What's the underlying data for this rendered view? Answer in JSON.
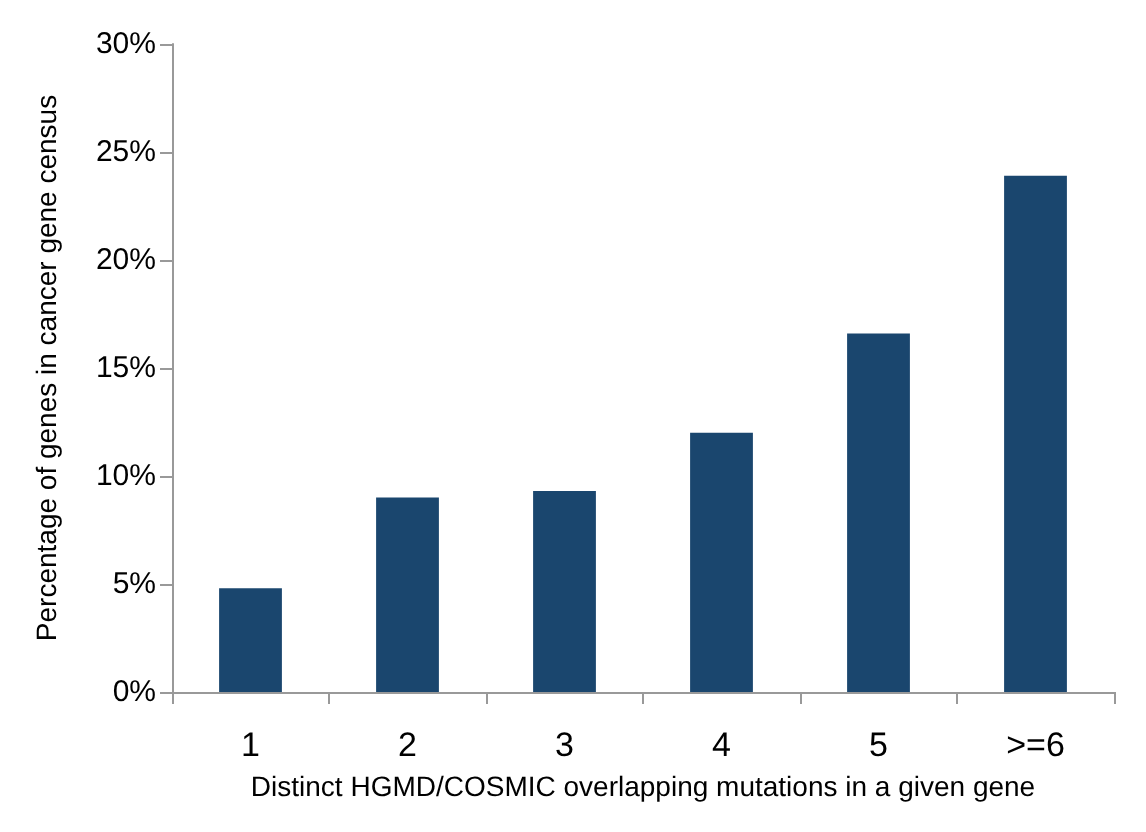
{
  "chart_data": {
    "type": "bar",
    "xlabel": "Distinct HGMD/COSMIC overlapping mutations in a given gene",
    "ylabel": "Percentage of genes in cancer gene census",
    "categories": [
      "1",
      "2",
      "3",
      "4",
      "5",
      ">=6"
    ],
    "values": [
      4.8,
      9.0,
      9.3,
      12.0,
      16.6,
      23.9
    ],
    "color": "#1a466e",
    "ylim": [
      0,
      30
    ],
    "yticks": [
      {
        "value": 0,
        "label": "0%"
      },
      {
        "value": 5,
        "label": "5%"
      },
      {
        "value": 10,
        "label": "10%"
      },
      {
        "value": 15,
        "label": "15%"
      },
      {
        "value": 20,
        "label": "20%"
      },
      {
        "value": 25,
        "label": "25%"
      },
      {
        "value": 30,
        "label": "30%"
      }
    ],
    "grid": false
  }
}
